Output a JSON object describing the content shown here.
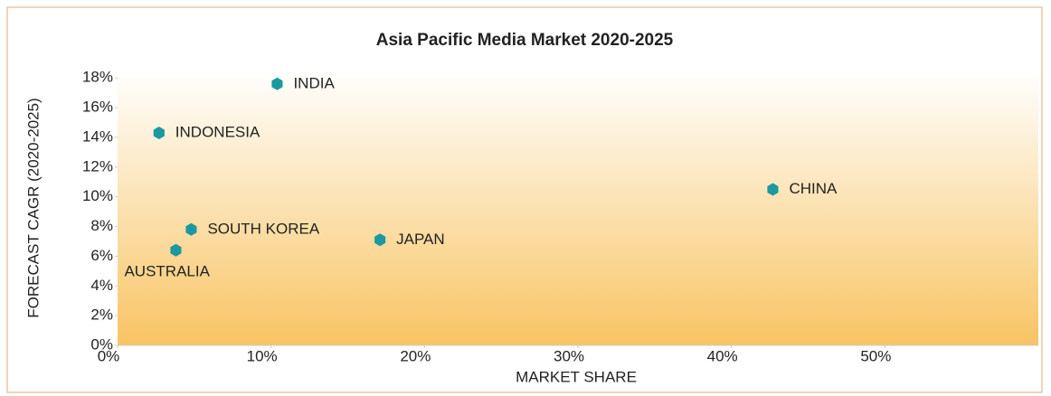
{
  "chart_data": {
    "type": "scatter",
    "title": "Asia Pacific Media Market 2020-2025",
    "x_label": "MARKET SHARE",
    "y_label": "FORECAST CAGR (2020-2025)",
    "labels": [
      "INDIA",
      "INDONESIA",
      "CHINA",
      "SOUTH KOREA",
      "JAPAN",
      "AUSTRALIA"
    ],
    "x": [
      10.4,
      2.7,
      42.7,
      4.8,
      17.1,
      3.8
    ],
    "values": [
      17.6,
      14.3,
      10.5,
      7.8,
      7.1,
      6.4
    ],
    "color": "#1a9aa0",
    "xlim": [
      0,
      60
    ],
    "xticks": [
      {
        "value": 0,
        "label": "0%"
      },
      {
        "value": 10,
        "label": "10%"
      },
      {
        "value": 20,
        "label": "20%"
      },
      {
        "value": 30,
        "label": "30%"
      },
      {
        "value": 40,
        "label": "40%"
      },
      {
        "value": 50,
        "label": "50%"
      }
    ],
    "ylim": [
      0,
      18.5
    ],
    "yticks": [
      {
        "value": 0,
        "label": "0%"
      },
      {
        "value": 2,
        "label": "2%"
      },
      {
        "value": 4,
        "label": "4%"
      },
      {
        "value": 6,
        "label": "6%"
      },
      {
        "value": 8,
        "label": "8%"
      },
      {
        "value": 10,
        "label": "10%"
      },
      {
        "value": 12,
        "label": "12%"
      },
      {
        "value": 14,
        "label": "14%"
      },
      {
        "value": 16,
        "label": "16%"
      },
      {
        "value": 18,
        "label": "18%"
      }
    ]
  }
}
